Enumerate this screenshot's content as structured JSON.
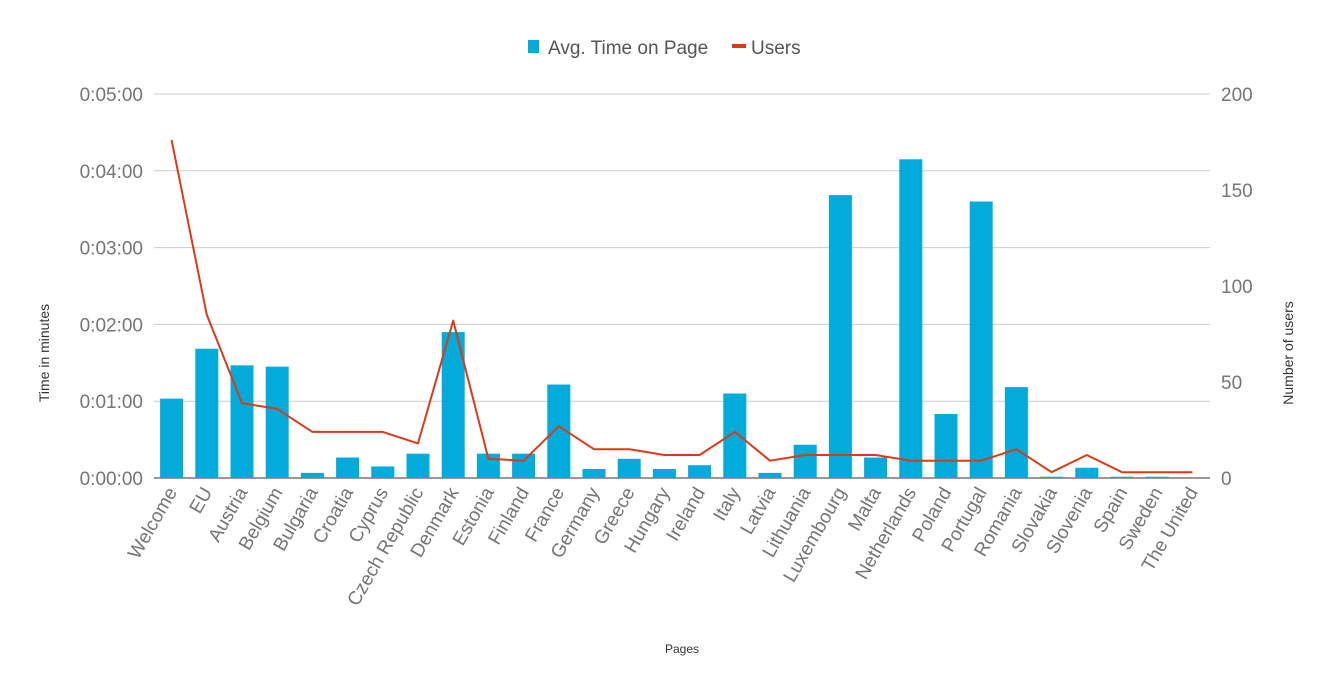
{
  "chart_data": {
    "type": "bar",
    "xlabel": "Pages",
    "ylabel": "Time in minutes",
    "y2label": "Number of users",
    "categories": [
      "Welcome",
      "EU",
      "Austria",
      "Belgium",
      "Bulgaria",
      "Croatia",
      "Cyprus",
      "Czech Republic",
      "Denmark",
      "Estonia",
      "Finland",
      "France",
      "Germany",
      "Greece",
      "Hungary",
      "Ireland",
      "Italy",
      "Latvia",
      "Lithuania",
      "Luxembourg",
      "Malta",
      "Netherlands",
      "Poland",
      "Portugal",
      "Romania",
      "Slovakia",
      "Slovenia",
      "Spain",
      "Sweden",
      "The United"
    ],
    "yticks": [
      "0:00:00",
      "0:01:00",
      "0:02:00",
      "0:03:00",
      "0:04:00",
      "0:05:00"
    ],
    "ylim_seconds": [
      0,
      300
    ],
    "y2ticks": [
      "0",
      "50",
      "100",
      "150",
      "200"
    ],
    "y2lim": [
      0,
      200
    ],
    "grid": true,
    "legend_position": "top",
    "series": [
      {
        "name": "Avg. Time on Page",
        "type": "bar",
        "axis": "left",
        "color": "#03ABDB",
        "values_seconds": [
          62,
          101,
          88,
          87,
          4,
          16,
          9,
          19,
          114,
          19,
          19,
          73,
          7,
          15,
          7,
          10,
          66,
          4,
          26,
          221,
          16,
          249,
          50,
          216,
          71,
          1,
          8,
          1,
          1,
          0
        ]
      },
      {
        "name": "Users",
        "type": "line",
        "axis": "right",
        "color": "#DB3A17",
        "values": [
          176,
          85,
          39,
          36,
          24,
          24,
          24,
          18,
          82,
          10,
          9,
          27,
          15,
          15,
          12,
          12,
          24,
          9,
          12,
          12,
          12,
          9,
          9,
          9,
          15,
          3,
          12,
          3,
          3,
          3
        ]
      }
    ]
  }
}
